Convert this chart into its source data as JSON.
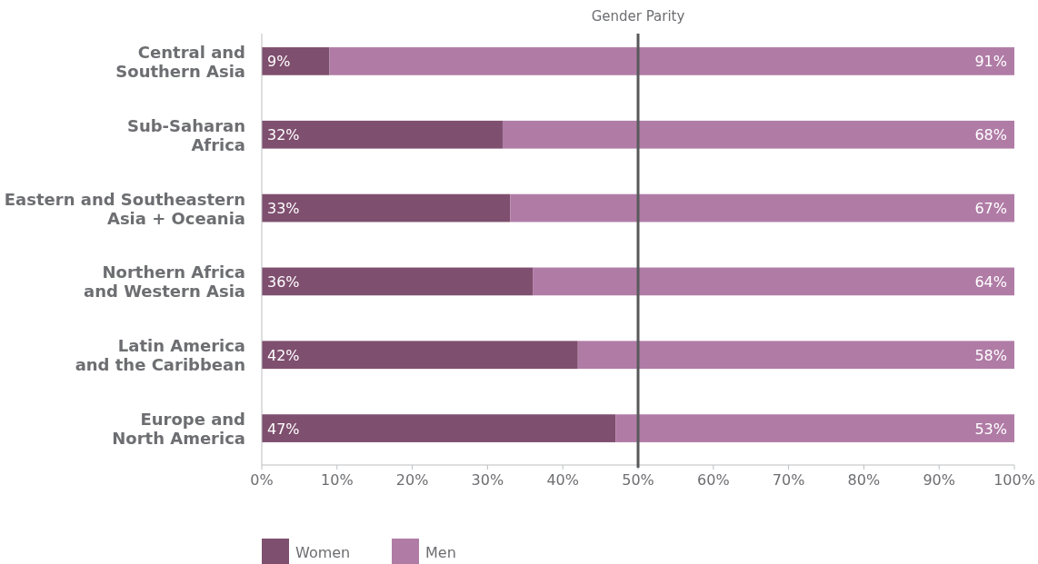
{
  "chart_data": {
    "type": "bar",
    "orientation": "horizontal",
    "stacked": true,
    "categories": [
      "Central and Southern Asia",
      "Sub-Saharan Africa",
      "Eastern and Southeastern Asia + Oceania",
      "Northern Africa and Western Asia",
      "Latin America and the Caribbean",
      "Europe and North America"
    ],
    "series": [
      {
        "name": "Women",
        "color": "#7f4f6f",
        "values": [
          9,
          32,
          33,
          36,
          42,
          47
        ],
        "value_labels": [
          "9%",
          "32%",
          "33%",
          "36%",
          "42%",
          "47%"
        ]
      },
      {
        "name": "Men",
        "color": "#b07ca6",
        "values": [
          91,
          68,
          67,
          64,
          58,
          53
        ],
        "value_labels": [
          "91%",
          "68%",
          "67%",
          "64%",
          "58%",
          "53%"
        ]
      }
    ],
    "xlim": [
      0,
      100
    ],
    "xticks": [
      {
        "value": 0,
        "label": "0%"
      },
      {
        "value": 10,
        "label": "10%"
      },
      {
        "value": 20,
        "label": "20%"
      },
      {
        "value": 30,
        "label": "30%"
      },
      {
        "value": 40,
        "label": "40%"
      },
      {
        "value": 50,
        "label": "50%"
      },
      {
        "value": 60,
        "label": "60%"
      },
      {
        "value": 70,
        "label": "70%"
      },
      {
        "value": 80,
        "label": "80%"
      },
      {
        "value": 90,
        "label": "90%"
      },
      {
        "value": 100,
        "label": "100%"
      }
    ],
    "ref_lines": [
      {
        "axis": "x",
        "value": 50,
        "label": "Gender Parity",
        "color": "#58595b"
      }
    ],
    "legend": "bottom left"
  }
}
